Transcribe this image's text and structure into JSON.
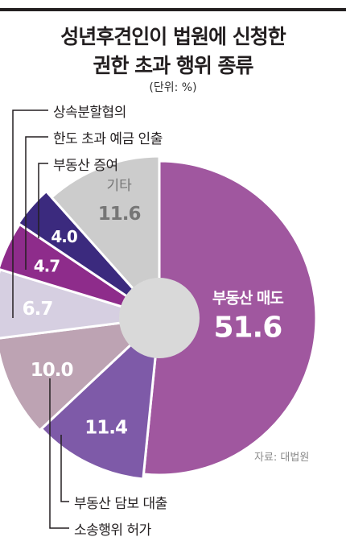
{
  "title_line1": "성년후견인이 법원에 신청한",
  "title_line2": "권한 초과 행위 종류",
  "unit": "(단위: %)",
  "source": "자료: 대법원",
  "chart_data": {
    "type": "pie",
    "title": "성년후견인이 법원에 신청한 권한 초과 행위 종류",
    "unit": "%",
    "slices": [
      {
        "label": "부동산 매도",
        "value": 51.6,
        "color": "#a0579f"
      },
      {
        "label": "부동산 담보 대출",
        "value": 11.4,
        "color": "#7e5aa8"
      },
      {
        "label": "소송행위 허가",
        "value": 10.0,
        "color": "#bda3b3"
      },
      {
        "label": "상속분할협의",
        "value": 6.7,
        "color": "#d6cfe1"
      },
      {
        "label": "한도 초과 예금 인출",
        "value": 4.7,
        "color": "#8e2c8b"
      },
      {
        "label": "부동산 증여",
        "value": 4.0,
        "color": "#3b2a7e"
      },
      {
        "label": "기타",
        "value": 11.6,
        "color": "#cccccc"
      }
    ]
  }
}
